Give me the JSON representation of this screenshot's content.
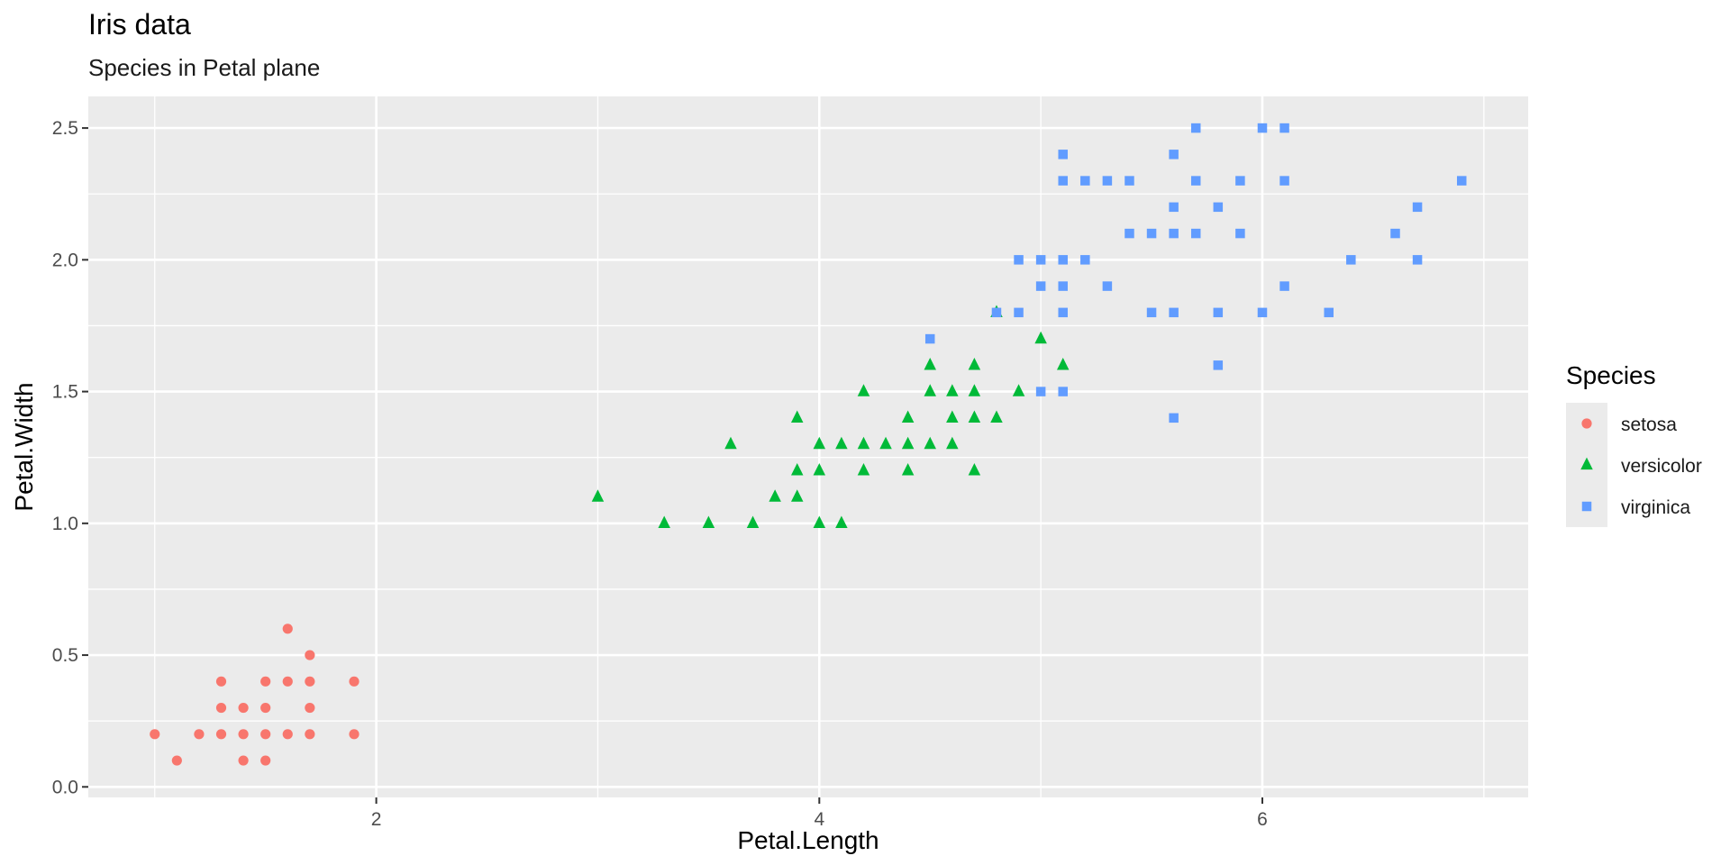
{
  "chart_data": {
    "type": "scatter",
    "title": "Iris data",
    "subtitle": "Species in Petal plane",
    "xlabel": "Petal.Length",
    "ylabel": "Petal.Width",
    "xlim": [
      0.7,
      7.2
    ],
    "ylim": [
      -0.04,
      2.62
    ],
    "x_ticks": [
      2,
      4,
      6
    ],
    "x_tick_labels": [
      "2",
      "4",
      "6"
    ],
    "y_ticks": [
      0.0,
      0.5,
      1.0,
      1.5,
      2.0,
      2.5
    ],
    "y_tick_labels": [
      "0.0",
      "0.5",
      "1.0",
      "1.5",
      "2.0",
      "2.5"
    ],
    "grid": true,
    "panel_background": "#ebebeb",
    "legend": {
      "title": "Species",
      "position": "right"
    },
    "series": [
      {
        "name": "setosa",
        "shape": "circle",
        "color": "#f8766d",
        "points": [
          [
            1.0,
            0.2
          ],
          [
            1.1,
            0.1
          ],
          [
            1.2,
            0.2
          ],
          [
            1.3,
            0.2
          ],
          [
            1.3,
            0.3
          ],
          [
            1.3,
            0.4
          ],
          [
            1.4,
            0.1
          ],
          [
            1.4,
            0.2
          ],
          [
            1.4,
            0.3
          ],
          [
            1.5,
            0.1
          ],
          [
            1.5,
            0.2
          ],
          [
            1.5,
            0.3
          ],
          [
            1.5,
            0.4
          ],
          [
            1.6,
            0.2
          ],
          [
            1.6,
            0.4
          ],
          [
            1.6,
            0.6
          ],
          [
            1.7,
            0.2
          ],
          [
            1.7,
            0.3
          ],
          [
            1.7,
            0.4
          ],
          [
            1.7,
            0.5
          ],
          [
            1.9,
            0.2
          ],
          [
            1.9,
            0.4
          ]
        ]
      },
      {
        "name": "versicolor",
        "shape": "triangle",
        "color": "#00ba38",
        "points": [
          [
            3.0,
            1.1
          ],
          [
            3.3,
            1.0
          ],
          [
            3.5,
            1.0
          ],
          [
            3.6,
            1.3
          ],
          [
            3.7,
            1.0
          ],
          [
            3.8,
            1.1
          ],
          [
            3.9,
            1.1
          ],
          [
            3.9,
            1.2
          ],
          [
            3.9,
            1.4
          ],
          [
            4.0,
            1.0
          ],
          [
            4.0,
            1.2
          ],
          [
            4.0,
            1.3
          ],
          [
            4.1,
            1.0
          ],
          [
            4.1,
            1.3
          ],
          [
            4.2,
            1.2
          ],
          [
            4.2,
            1.3
          ],
          [
            4.2,
            1.5
          ],
          [
            4.3,
            1.3
          ],
          [
            4.4,
            1.2
          ],
          [
            4.4,
            1.3
          ],
          [
            4.4,
            1.4
          ],
          [
            4.5,
            1.3
          ],
          [
            4.5,
            1.5
          ],
          [
            4.5,
            1.6
          ],
          [
            4.6,
            1.3
          ],
          [
            4.6,
            1.4
          ],
          [
            4.6,
            1.5
          ],
          [
            4.7,
            1.2
          ],
          [
            4.7,
            1.4
          ],
          [
            4.7,
            1.5
          ],
          [
            4.7,
            1.6
          ],
          [
            4.8,
            1.4
          ],
          [
            4.8,
            1.8
          ],
          [
            4.9,
            1.5
          ],
          [
            5.0,
            1.7
          ],
          [
            5.1,
            1.6
          ]
        ]
      },
      {
        "name": "virginica",
        "shape": "square",
        "color": "#619cff",
        "points": [
          [
            4.5,
            1.7
          ],
          [
            4.8,
            1.8
          ],
          [
            4.9,
            1.8
          ],
          [
            4.9,
            2.0
          ],
          [
            5.0,
            1.5
          ],
          [
            5.0,
            1.9
          ],
          [
            5.0,
            2.0
          ],
          [
            5.1,
            1.5
          ],
          [
            5.1,
            1.8
          ],
          [
            5.1,
            1.9
          ],
          [
            5.1,
            2.0
          ],
          [
            5.1,
            2.3
          ],
          [
            5.1,
            2.4
          ],
          [
            5.2,
            2.0
          ],
          [
            5.2,
            2.3
          ],
          [
            5.3,
            1.9
          ],
          [
            5.3,
            2.3
          ],
          [
            5.4,
            2.1
          ],
          [
            5.4,
            2.3
          ],
          [
            5.5,
            1.8
          ],
          [
            5.5,
            2.1
          ],
          [
            5.6,
            1.4
          ],
          [
            5.6,
            1.8
          ],
          [
            5.6,
            2.1
          ],
          [
            5.6,
            2.2
          ],
          [
            5.6,
            2.4
          ],
          [
            5.7,
            2.1
          ],
          [
            5.7,
            2.3
          ],
          [
            5.7,
            2.5
          ],
          [
            5.8,
            1.6
          ],
          [
            5.8,
            1.8
          ],
          [
            5.8,
            2.2
          ],
          [
            5.9,
            2.1
          ],
          [
            5.9,
            2.3
          ],
          [
            6.0,
            1.8
          ],
          [
            6.0,
            2.5
          ],
          [
            6.1,
            1.9
          ],
          [
            6.1,
            2.3
          ],
          [
            6.1,
            2.5
          ],
          [
            6.3,
            1.8
          ],
          [
            6.4,
            2.0
          ],
          [
            6.6,
            2.1
          ],
          [
            6.7,
            2.0
          ],
          [
            6.7,
            2.2
          ],
          [
            6.9,
            2.3
          ]
        ]
      }
    ]
  }
}
